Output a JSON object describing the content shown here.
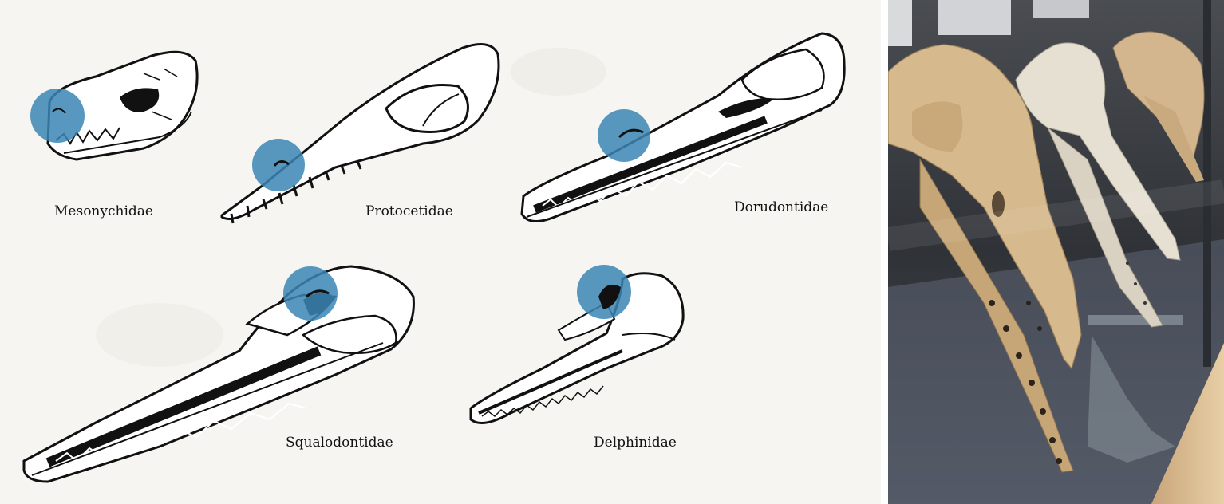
{
  "diagram": {
    "labels": {
      "mesonychidae": "Mesonychidae",
      "protocetidae": "Protocetidae",
      "dorudontidae": "Dorudontidae",
      "squalodontidae": "Squalodontidae",
      "delphinidae": "Delphinidae"
    },
    "colors": {
      "nostril_marker": "#3b86b5",
      "ink": "#111111",
      "paper": "#f6f5f1"
    }
  },
  "photo": {
    "icons": [
      "skull-specimen-icon",
      "display-case-icon"
    ]
  }
}
